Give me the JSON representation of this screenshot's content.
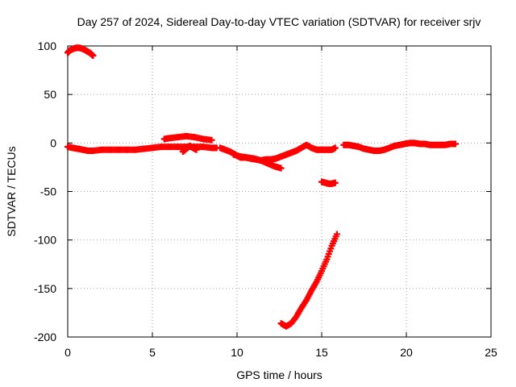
{
  "chart_data": {
    "type": "scatter",
    "title": "Day 257 of 2024, Sidereal Day-to-day VTEC variation (SDTVAR) for receiver srjv",
    "xlabel": "GPS time / hours",
    "ylabel": "SDTVAR / TECUs",
    "xlim": [
      0,
      25
    ],
    "ylim": [
      -200,
      100
    ],
    "xticks": [
      0,
      5,
      10,
      15,
      20,
      25
    ],
    "yticks": [
      -200,
      -150,
      -100,
      -50,
      0,
      50,
      100
    ],
    "xtick_labels": [
      "0",
      "5",
      "10",
      "15",
      "20",
      "25"
    ],
    "ytick_labels": [
      "-200",
      "-150",
      "-100",
      "-50",
      "0",
      "50",
      "100"
    ],
    "grid": true,
    "marker": "plus",
    "color": "#ff0000",
    "series": [
      {
        "x": [
          0.0,
          0.1,
          0.3,
          0.5,
          0.7,
          0.9,
          1.1,
          1.3,
          1.5
        ],
        "y": [
          93,
          95,
          97,
          98,
          98,
          97,
          95,
          93,
          90
        ]
      },
      {
        "x": [
          0.0,
          0.3,
          0.6,
          0.9,
          1.2,
          1.5,
          2.0,
          2.5,
          3.0,
          3.5,
          4.0,
          4.5,
          5.0,
          5.5,
          6.0,
          6.5,
          7.0,
          7.5,
          8.0,
          8.5,
          8.8
        ],
        "y": [
          -4,
          -5,
          -6,
          -7,
          -8,
          -8,
          -7,
          -7,
          -7,
          -7,
          -7,
          -6,
          -5,
          -4,
          -4,
          -4,
          -4,
          -4,
          -4,
          -5,
          -5
        ]
      },
      {
        "x": [
          5.7,
          6.0,
          6.5,
          7.0,
          7.5,
          8.0,
          8.5
        ],
        "y": [
          4,
          5,
          6,
          7,
          6,
          4,
          3
        ]
      },
      {
        "x": [
          6.8,
          7.0,
          7.2,
          7.4,
          7.6
        ],
        "y": [
          -9,
          -6,
          -3,
          -5,
          -7
        ]
      },
      {
        "x": [
          9.0,
          9.3,
          9.6,
          9.9,
          10.2,
          10.5,
          10.8,
          11.1,
          11.4,
          11.7,
          12.0,
          12.3,
          12.6,
          12.9,
          13.2,
          13.5,
          13.8,
          14.1,
          14.4,
          14.7,
          15.0,
          15.3,
          15.6,
          15.8
        ],
        "y": [
          -5,
          -7,
          -9,
          -12,
          -15,
          -15,
          -16,
          -17,
          -18,
          -17,
          -17,
          -16,
          -14,
          -12,
          -10,
          -8,
          -5,
          -2,
          -5,
          -7,
          -7,
          -7,
          -7,
          -5
        ]
      },
      {
        "x": [
          9.8,
          10.2,
          10.6,
          11.0,
          11.4,
          11.8,
          12.2,
          12.6
        ],
        "y": [
          -12,
          -14,
          -15,
          -16,
          -18,
          -21,
          -24,
          -26
        ]
      },
      {
        "x": [
          15.0,
          15.2,
          15.4,
          15.6,
          15.8
        ],
        "y": [
          -40,
          -41,
          -42,
          -42,
          -41
        ]
      },
      {
        "x": [
          12.6,
          12.9,
          13.2,
          13.5,
          13.8,
          14.1,
          14.4,
          14.7,
          15.0,
          15.3,
          15.6,
          15.9
        ],
        "y": [
          -186,
          -189,
          -186,
          -179,
          -170,
          -162,
          -152,
          -143,
          -132,
          -120,
          -106,
          -94
        ]
      },
      {
        "x": [
          16.3,
          16.6,
          16.9,
          17.2,
          17.5,
          17.8,
          18.1,
          18.4,
          18.7,
          19.0,
          19.3,
          19.6,
          19.9,
          20.2,
          20.5,
          20.8,
          21.1,
          21.4,
          21.7,
          22.0,
          22.3,
          22.6,
          22.9
        ],
        "y": [
          -2,
          -2,
          -3,
          -4,
          -6,
          -7,
          -8,
          -8,
          -7,
          -5,
          -3,
          -2,
          -1,
          0,
          0,
          -1,
          -1,
          -2,
          -2,
          -2,
          -2,
          -1,
          -1
        ]
      }
    ]
  }
}
